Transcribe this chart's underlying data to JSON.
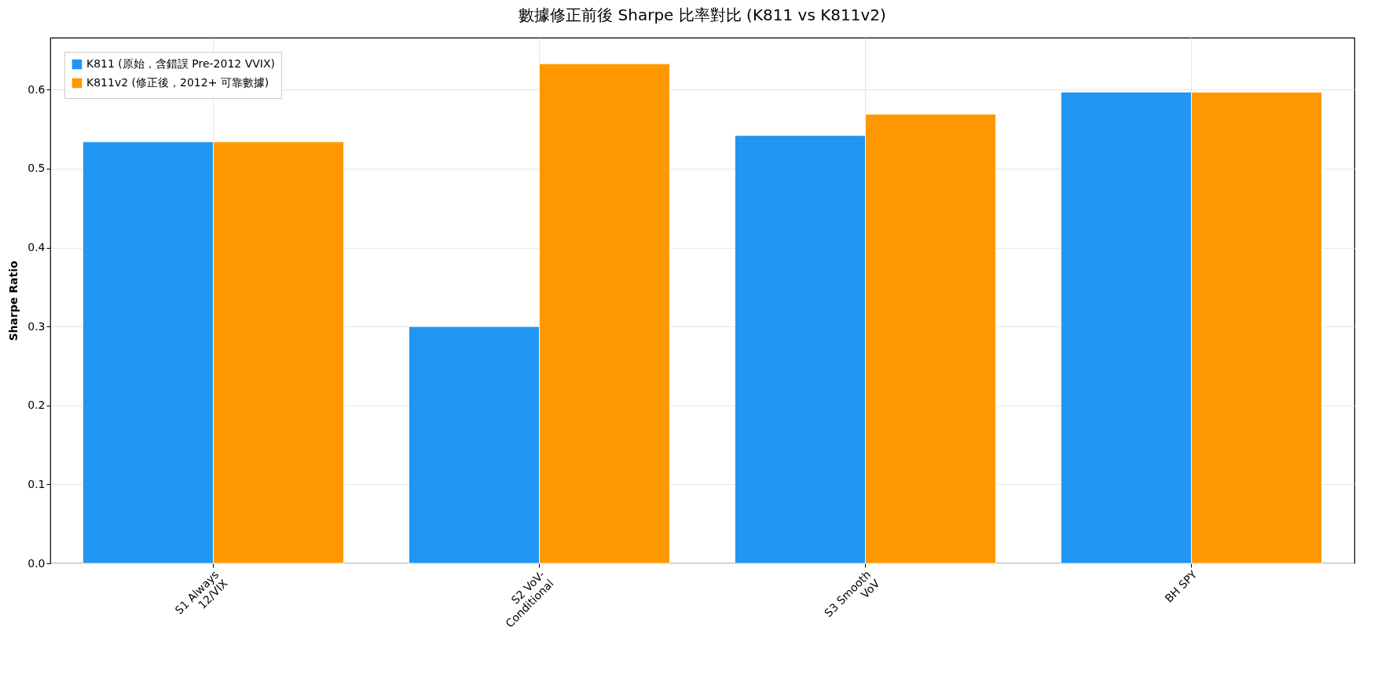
{
  "chart_data": {
    "type": "bar",
    "title": "數據修正前後 Sharpe 比率對比 (K811 vs K811v2)",
    "ylabel": "Sharpe Ratio",
    "categories": [
      "S1 Always\n12/VIX",
      "S2 VoV-\nConditional",
      "S3 Smooth\nVoV",
      "BH SPY"
    ],
    "series": [
      {
        "name": "K811 (原始，含錯誤 Pre-2012 VVIX)",
        "color": "#2196f3",
        "values": [
          0.534,
          0.3,
          0.542,
          0.597
        ]
      },
      {
        "name": "K811v2 (修正後，2012+ 可靠數據)",
        "color": "#ff9800",
        "values": [
          0.534,
          0.633,
          0.569,
          0.597
        ]
      }
    ],
    "ylim": [
      0,
      0.666
    ],
    "yticks": [
      {
        "value": 0,
        "label": "0.0"
      },
      0.1,
      0.2,
      0.3,
      0.4,
      0.5,
      0.6
    ],
    "grid": true,
    "legend": "top left"
  }
}
